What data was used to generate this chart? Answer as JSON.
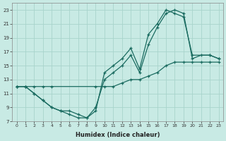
{
  "xlabel": "Humidex (Indice chaleur)",
  "bg_color": "#c8eae4",
  "grid_color": "#a8d4cc",
  "line_color": "#1a6b60",
  "xlim": [
    -0.5,
    23.5
  ],
  "ylim": [
    7,
    24
  ],
  "xticks": [
    0,
    1,
    2,
    3,
    4,
    5,
    6,
    7,
    8,
    9,
    10,
    11,
    12,
    13,
    14,
    15,
    16,
    17,
    18,
    19,
    20,
    21,
    22,
    23
  ],
  "yticks": [
    7,
    9,
    11,
    13,
    15,
    17,
    19,
    21,
    23
  ],
  "line1_x": [
    0,
    1,
    2,
    3,
    4,
    5,
    6,
    7,
    8,
    9,
    10,
    11,
    12,
    13,
    14,
    15,
    16,
    17,
    18,
    19,
    20,
    22,
    23
  ],
  "line1_y": [
    12,
    12,
    11,
    10,
    9,
    8.5,
    8,
    7.5,
    7.5,
    8.5,
    14,
    15,
    16,
    17.5,
    14.5,
    19.5,
    21,
    23,
    22.5,
    22,
    16.5,
    16.5,
    16
  ],
  "line2_x": [
    0,
    1,
    2,
    3,
    4,
    5,
    6,
    7,
    8,
    9,
    10,
    11,
    12,
    13,
    14,
    15,
    16,
    17,
    18,
    19,
    20,
    21,
    22,
    23
  ],
  "line2_y": [
    12,
    12,
    11,
    10,
    9,
    8.5,
    8.5,
    8,
    7.5,
    9,
    13,
    14,
    15,
    16.5,
    14,
    18,
    20.5,
    22.5,
    23,
    22.5,
    16,
    16.5,
    16.5,
    16
  ],
  "line3_x": [
    0,
    1,
    2,
    3,
    4,
    9,
    10,
    11,
    12,
    13,
    14,
    15,
    16,
    17,
    18,
    19,
    20,
    21,
    22,
    23
  ],
  "line3_y": [
    12,
    12,
    12,
    12,
    12,
    12,
    12,
    12,
    12.5,
    13,
    13,
    13.5,
    14,
    15,
    15.5,
    15.5,
    15.5,
    15.5,
    15.5,
    15.5
  ]
}
